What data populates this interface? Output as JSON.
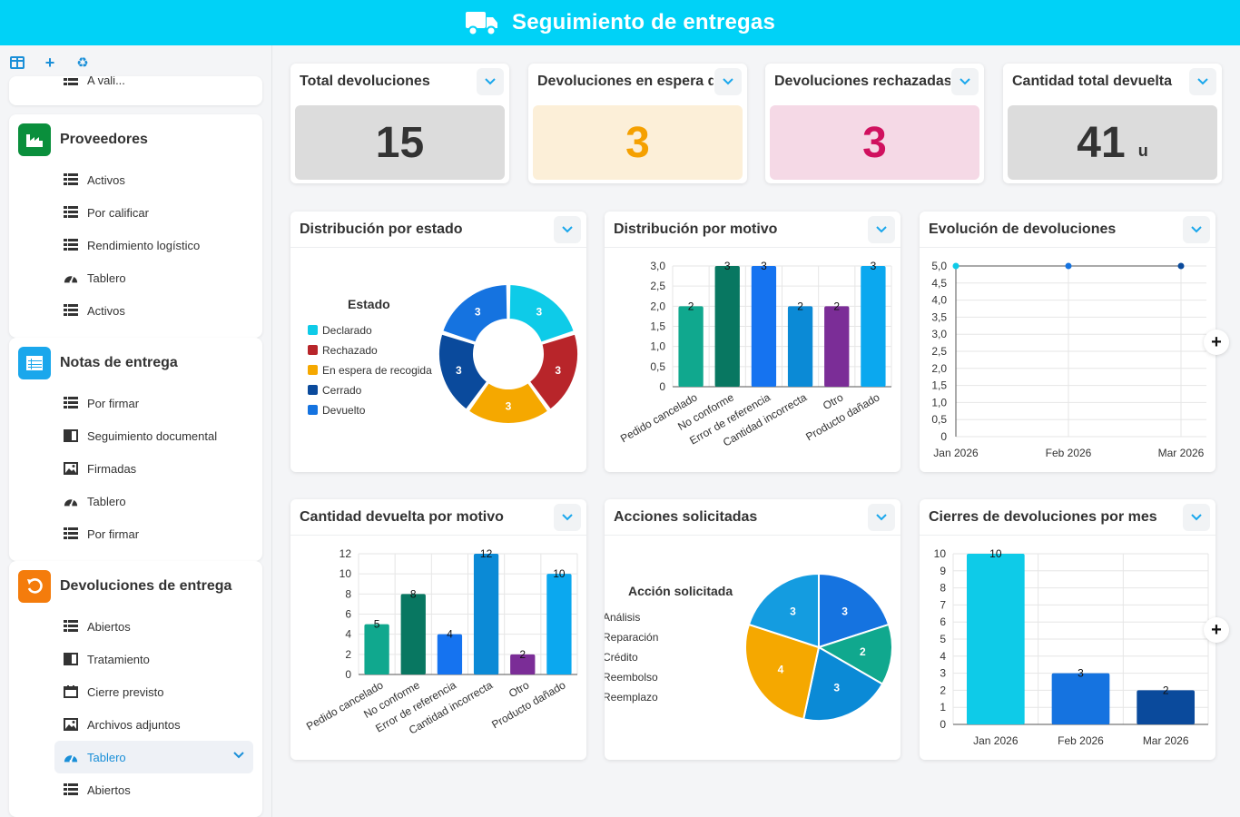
{
  "header": {
    "title": "Seguimiento de entregas",
    "icon": "truck-icon"
  },
  "sidebar": {
    "toolbar": [
      {
        "icon": "layout-icon"
      },
      {
        "icon": "plus-icon",
        "label": "+"
      },
      {
        "icon": "recycle-icon",
        "label": "♻"
      }
    ],
    "partial_item": "A vali...",
    "groups": [
      {
        "title": "Proveedores",
        "color": "#0a8f3c",
        "icon": "factory-icon",
        "items": [
          {
            "label": "Activos",
            "icon": "list-icon"
          },
          {
            "label": "Por calificar",
            "icon": "list-icon"
          },
          {
            "label": "Rendimiento logístico",
            "icon": "list-icon"
          },
          {
            "label": "Tablero",
            "icon": "gauge-icon"
          },
          {
            "label": "Activos",
            "icon": "list-icon"
          }
        ]
      },
      {
        "title": "Notas de entrega",
        "color": "#1aa7ec",
        "icon": "grid-icon",
        "items": [
          {
            "label": "Por firmar",
            "icon": "list-icon"
          },
          {
            "label": "Seguimiento documental",
            "icon": "book-icon"
          },
          {
            "label": "Firmadas",
            "icon": "image-icon"
          },
          {
            "label": "Tablero",
            "icon": "gauge-icon"
          },
          {
            "label": "Por firmar",
            "icon": "list-icon"
          }
        ]
      },
      {
        "title": "Devoluciones de entrega",
        "color": "#f47c0c",
        "icon": "undo-icon",
        "items": [
          {
            "label": "Abiertos",
            "icon": "list-icon"
          },
          {
            "label": "Tratamiento",
            "icon": "book-icon"
          },
          {
            "label": "Cierre previsto",
            "icon": "calendar-icon"
          },
          {
            "label": "Archivos adjuntos",
            "icon": "image-icon"
          },
          {
            "label": "Tablero",
            "icon": "gauge-icon",
            "active": true
          },
          {
            "label": "Abiertos",
            "icon": "list-icon"
          }
        ]
      }
    ]
  },
  "kpis": [
    {
      "title": "Total devoluciones",
      "value": "15",
      "unit": "",
      "bg": "#dcdcdc",
      "color": "#333333"
    },
    {
      "title": "Devoluciones en espera de recogida",
      "value": "3",
      "unit": "",
      "bg": "#fcefd8",
      "color": "#f5a000"
    },
    {
      "title": "Devoluciones rechazadas",
      "value": "3",
      "unit": "",
      "bg": "#f5d9e6",
      "color": "#d0115f"
    },
    {
      "title": "Cantidad total devuelta",
      "value": "41",
      "unit": "u",
      "bg": "#dcdcdc",
      "color": "#333333"
    }
  ],
  "panels": {
    "estado": "Distribución por estado",
    "motivo": "Distribución por motivo",
    "evolucion": "Evolución de devoluciones",
    "cantidad": "Cantidad devuelta por motivo",
    "acciones": "Acciones solicitadas",
    "cierres": "Cierres de devoluciones por mes"
  },
  "chart_data": [
    {
      "id": "estado",
      "type": "pie",
      "donut": true,
      "legend_title": "Estado",
      "legend": "left",
      "categories": [
        "Declarado",
        "Rechazado",
        "En espera de recogida",
        "Cerrado",
        "Devuelto"
      ],
      "values": [
        3,
        3,
        3,
        3,
        3
      ],
      "colors": [
        "#0ecbe8",
        "#b8252a",
        "#f5a800",
        "#0a4a9c",
        "#1573e0"
      ]
    },
    {
      "id": "motivo",
      "type": "bar",
      "categories": [
        "Pedido cancelado",
        "No conforme",
        "Error de referencia",
        "Cantidad incorrecta",
        "Otro",
        "Producto dañado"
      ],
      "values": [
        2,
        3,
        3,
        2,
        2,
        3
      ],
      "colors": [
        "#10a88e",
        "#087761",
        "#1573f0",
        "#0b8ad6",
        "#7b2d97",
        "#0ba8ef"
      ],
      "yticks": [
        "0",
        "0,5",
        "1,0",
        "1,5",
        "2,0",
        "2,5",
        "3,0"
      ],
      "ylim": [
        0,
        3
      ]
    },
    {
      "id": "evolucion",
      "type": "line",
      "categories": [
        "Jan 2026",
        "Feb 2026",
        "Mar 2026"
      ],
      "values": [
        5,
        5,
        5
      ],
      "point_colors": [
        "#0ecbe8",
        "#1573e0",
        "#0a4a9c"
      ],
      "yticks": [
        "0",
        "0,5",
        "1,0",
        "1,5",
        "2,0",
        "2,5",
        "3,0",
        "3,5",
        "4,0",
        "4,5",
        "5,0"
      ],
      "ylim": [
        0,
        5
      ]
    },
    {
      "id": "cantidad",
      "type": "bar",
      "categories": [
        "Pedido cancelado",
        "No conforme",
        "Error de referencia",
        "Cantidad incorrecta",
        "Otro",
        "Producto dañado"
      ],
      "values": [
        5,
        8,
        4,
        12,
        2,
        10
      ],
      "colors": [
        "#10a88e",
        "#087761",
        "#1573f0",
        "#0b8ad6",
        "#7b2d97",
        "#0ba8ef"
      ],
      "yticks": [
        "0",
        "2",
        "4",
        "6",
        "8",
        "10",
        "12"
      ],
      "ylim": [
        0,
        12
      ]
    },
    {
      "id": "acciones",
      "type": "pie",
      "donut": false,
      "legend_title": "Acción solicitada",
      "legend": "left",
      "categories": [
        "Análisis",
        "Reparación",
        "Crédito",
        "Reembolso",
        "Reemplazo"
      ],
      "values": [
        3,
        2,
        3,
        4,
        3
      ],
      "colors": [
        "#1573e0",
        "#10a88e",
        "#0b8ad6",
        "#f5a800",
        "#149ce0"
      ]
    },
    {
      "id": "cierres",
      "type": "bar",
      "categories": [
        "Jan 2026",
        "Feb 2026",
        "Mar 2026"
      ],
      "values": [
        10,
        3,
        2
      ],
      "colors": [
        "#0ecbe8",
        "#1573e0",
        "#0a4a9c"
      ],
      "yticks": [
        "0",
        "1",
        "2",
        "3",
        "4",
        "5",
        "6",
        "7",
        "8",
        "9",
        "10"
      ],
      "ylim": [
        0,
        10
      ]
    }
  ]
}
